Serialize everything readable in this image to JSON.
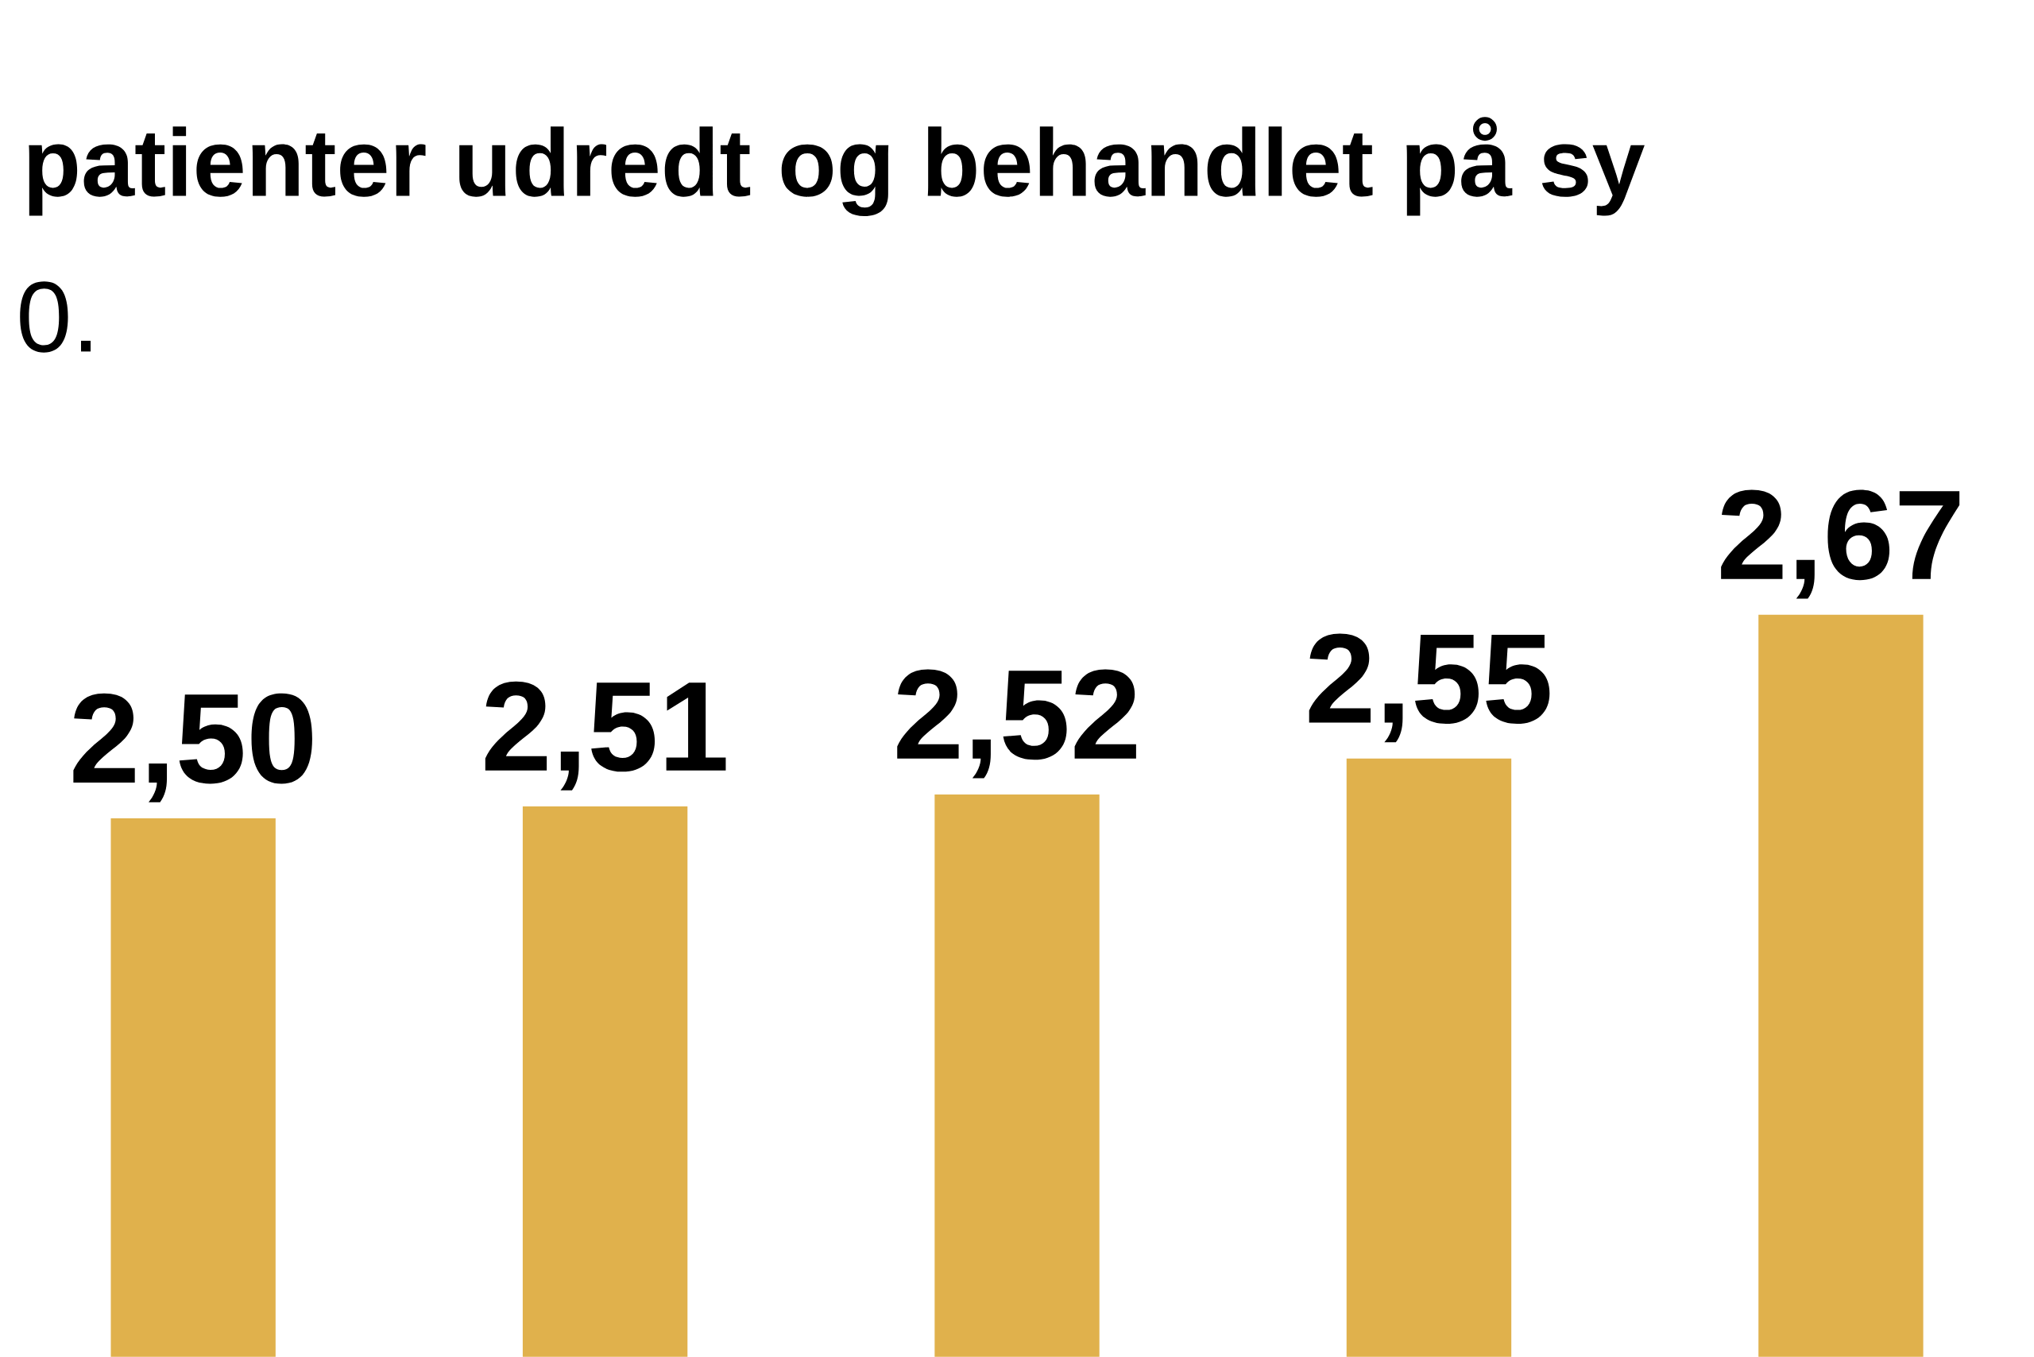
{
  "chart_data": {
    "type": "bar",
    "title": "patienter udredt og behandlet på sy",
    "subtitle": "0.",
    "categories": [
      null,
      null,
      null,
      null,
      null
    ],
    "values": [
      2.5,
      2.51,
      2.52,
      2.55,
      2.67
    ],
    "value_labels": [
      "2,50",
      "2,51",
      "2,52",
      "2,55",
      "2,67"
    ],
    "color": "#e0b14c"
  }
}
